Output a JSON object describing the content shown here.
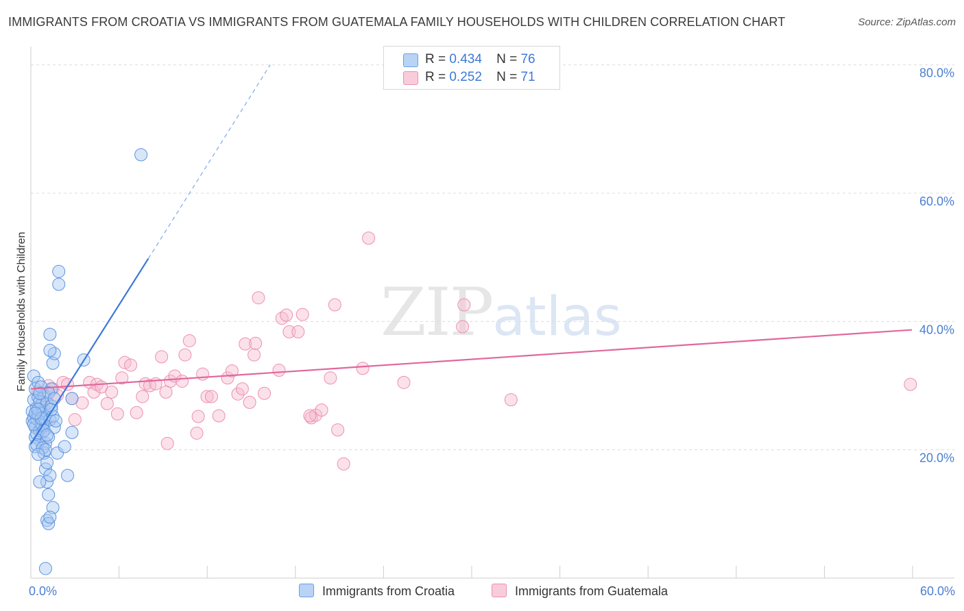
{
  "title": "IMMIGRANTS FROM CROATIA VS IMMIGRANTS FROM GUATEMALA FAMILY HOUSEHOLDS WITH CHILDREN CORRELATION CHART",
  "source": "Source: ZipAtlas.com",
  "watermark": {
    "zip": "ZIP",
    "atlas": "atlas"
  },
  "colors": {
    "blue": "#3b78d8",
    "blue_fill": "#a9c8f2",
    "pink": "#e0679a",
    "pink_fill": "#f6bcd0",
    "grid": "#dcdcdc",
    "tick_text": "#4a7fd0"
  },
  "legend": {
    "rows": [
      {
        "r_label": "R =",
        "r_value": "0.434",
        "n_label": "N =",
        "n_value": "76"
      },
      {
        "r_label": "R =",
        "r_value": "0.252",
        "n_label": "N =",
        "n_value": "71"
      }
    ]
  },
  "bottom_legend": {
    "croatia": "Immigrants from Croatia",
    "guatemala": "Immigrants from Guatemala"
  },
  "chart_data": {
    "type": "scatter",
    "title": "IMMIGRANTS FROM CROATIA VS IMMIGRANTS FROM GUATEMALA FAMILY HOUSEHOLDS WITH CHILDREN CORRELATION CHART",
    "xlabel": "",
    "ylabel": "Family Households with Children",
    "xlim": [
      0,
      60
    ],
    "ylim": [
      0,
      82
    ],
    "x_tick_labels": [
      "0.0%",
      "60.0%"
    ],
    "y_ticks": [
      20,
      40,
      60,
      80
    ],
    "y_tick_labels": [
      "20.0%",
      "40.0%",
      "60.0%",
      "80.0%"
    ],
    "series": [
      {
        "name": "Immigrants from Croatia",
        "r": 0.434,
        "n": 76,
        "trend": {
          "x0": 0.0,
          "y0": 20.9,
          "x1": 8.0,
          "y1": 49.8,
          "dash_x1": 16.3,
          "dash_y1": 80.0
        },
        "points": [
          [
            0.1,
            26.0
          ],
          [
            0.1,
            24.5
          ],
          [
            0.2,
            27.8
          ],
          [
            0.2,
            25.0
          ],
          [
            0.3,
            23.5
          ],
          [
            0.3,
            22.0
          ],
          [
            0.4,
            26.5
          ],
          [
            0.4,
            24.8
          ],
          [
            0.5,
            28.2
          ],
          [
            0.5,
            25.5
          ],
          [
            0.6,
            23.0
          ],
          [
            0.6,
            21.5
          ],
          [
            0.7,
            27.0
          ],
          [
            0.7,
            24.0
          ],
          [
            0.8,
            25.8
          ],
          [
            0.8,
            22.8
          ],
          [
            0.9,
            28.5
          ],
          [
            0.9,
            26.2
          ],
          [
            1.0,
            24.3
          ],
          [
            1.0,
            21.0
          ],
          [
            0.2,
            31.5
          ],
          [
            0.3,
            29.5
          ],
          [
            0.5,
            30.5
          ],
          [
            0.6,
            27.5
          ],
          [
            0.7,
            29.8
          ],
          [
            0.4,
            22.5
          ],
          [
            0.3,
            20.5
          ],
          [
            0.8,
            23.8
          ],
          [
            0.9,
            25.0
          ],
          [
            1.1,
            27.3
          ],
          [
            1.2,
            22.0
          ],
          [
            1.3,
            24.7
          ],
          [
            1.4,
            26.8
          ],
          [
            1.5,
            25.2
          ],
          [
            1.6,
            23.5
          ],
          [
            1.0,
            17.0
          ],
          [
            1.1,
            15.0
          ],
          [
            1.2,
            13.0
          ],
          [
            1.3,
            16.0
          ],
          [
            1.5,
            11.0
          ],
          [
            1.1,
            9.0
          ],
          [
            1.2,
            8.5
          ],
          [
            1.3,
            9.5
          ],
          [
            1.0,
            1.5
          ],
          [
            0.9,
            19.5
          ],
          [
            1.1,
            18.0
          ],
          [
            1.4,
            29.5
          ],
          [
            1.5,
            33.5
          ],
          [
            1.6,
            35.0
          ],
          [
            1.3,
            35.5
          ],
          [
            1.3,
            38.0
          ],
          [
            1.9,
            47.8
          ],
          [
            1.9,
            45.8
          ],
          [
            2.5,
            16.0
          ],
          [
            1.8,
            19.5
          ],
          [
            2.3,
            20.5
          ],
          [
            2.8,
            22.7
          ],
          [
            2.8,
            28.0
          ],
          [
            3.6,
            34.0
          ],
          [
            7.5,
            66.0
          ],
          [
            0.6,
            15.0
          ],
          [
            0.2,
            24.0
          ],
          [
            0.4,
            20.8
          ],
          [
            0.5,
            26.3
          ],
          [
            0.7,
            24.9
          ],
          [
            0.8,
            20.3
          ],
          [
            1.0,
            20.0
          ],
          [
            1.2,
            28.9
          ],
          [
            1.4,
            26.3
          ],
          [
            1.6,
            28.0
          ],
          [
            1.7,
            24.5
          ],
          [
            0.3,
            25.7
          ],
          [
            0.6,
            28.8
          ],
          [
            0.9,
            23.0
          ],
          [
            1.1,
            22.3
          ],
          [
            0.5,
            19.3
          ]
        ]
      },
      {
        "name": "Immigrants from Guatemala",
        "r": 0.252,
        "n": 71,
        "trend": {
          "x0": 0.0,
          "y0": 29.5,
          "x1": 60.0,
          "y1": 38.7
        },
        "points": [
          [
            0.5,
            29.0
          ],
          [
            0.8,
            27.5
          ],
          [
            1.0,
            28.0
          ],
          [
            1.2,
            30.0
          ],
          [
            1.5,
            29.5
          ],
          [
            1.8,
            28.5
          ],
          [
            2.2,
            30.5
          ],
          [
            2.5,
            30.2
          ],
          [
            2.8,
            28.0
          ],
          [
            3.0,
            24.7
          ],
          [
            3.5,
            27.3
          ],
          [
            4.0,
            30.5
          ],
          [
            4.3,
            29.0
          ],
          [
            4.5,
            30.2
          ],
          [
            4.8,
            29.8
          ],
          [
            5.2,
            27.2
          ],
          [
            5.5,
            29.0
          ],
          [
            5.9,
            25.6
          ],
          [
            6.2,
            31.2
          ],
          [
            6.4,
            33.6
          ],
          [
            6.8,
            33.2
          ],
          [
            7.2,
            25.8
          ],
          [
            7.6,
            28.3
          ],
          [
            7.8,
            30.3
          ],
          [
            8.1,
            30.0
          ],
          [
            8.5,
            30.3
          ],
          [
            8.9,
            34.5
          ],
          [
            9.2,
            29.0
          ],
          [
            9.3,
            21.0
          ],
          [
            9.5,
            30.7
          ],
          [
            9.8,
            31.5
          ],
          [
            10.3,
            30.7
          ],
          [
            10.5,
            34.8
          ],
          [
            10.8,
            37.0
          ],
          [
            11.3,
            22.6
          ],
          [
            11.4,
            25.2
          ],
          [
            11.7,
            31.8
          ],
          [
            12.0,
            28.3
          ],
          [
            12.3,
            28.3
          ],
          [
            12.8,
            25.3
          ],
          [
            13.4,
            31.2
          ],
          [
            13.7,
            32.3
          ],
          [
            14.1,
            28.7
          ],
          [
            14.4,
            29.5
          ],
          [
            14.6,
            36.5
          ],
          [
            14.9,
            27.4
          ],
          [
            15.2,
            34.8
          ],
          [
            15.3,
            36.6
          ],
          [
            15.5,
            43.7
          ],
          [
            15.9,
            28.8
          ],
          [
            16.9,
            32.4
          ],
          [
            17.1,
            40.5
          ],
          [
            17.4,
            41.0
          ],
          [
            17.6,
            38.4
          ],
          [
            18.2,
            38.4
          ],
          [
            18.5,
            41.1
          ],
          [
            19.1,
            25.0
          ],
          [
            19.4,
            25.4
          ],
          [
            19.8,
            26.2
          ],
          [
            20.4,
            31.2
          ],
          [
            20.7,
            42.6
          ],
          [
            20.9,
            23.1
          ],
          [
            21.3,
            17.8
          ],
          [
            22.6,
            32.7
          ],
          [
            23.0,
            53.0
          ],
          [
            25.4,
            30.5
          ],
          [
            29.4,
            39.2
          ],
          [
            29.5,
            42.6
          ],
          [
            32.7,
            27.8
          ],
          [
            59.9,
            30.2
          ],
          [
            19.0,
            25.3
          ]
        ]
      }
    ]
  }
}
